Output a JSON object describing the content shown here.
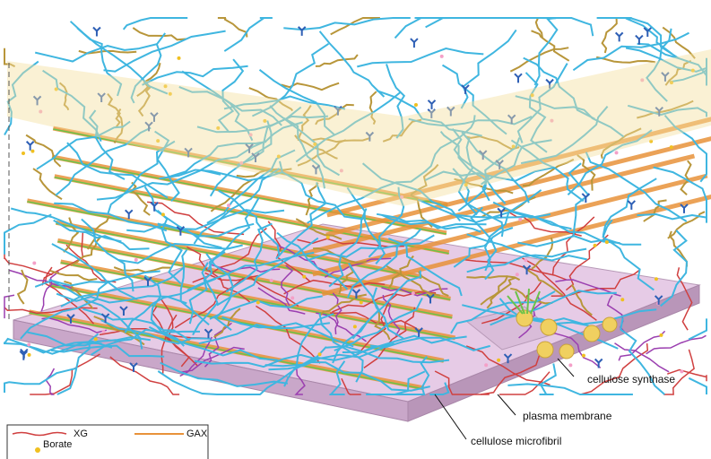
{
  "annotations": [
    "cellulose synthase",
    "plasma membrane",
    "cellulose microfibril"
  ],
  "legend": [
    "XG",
    "GAX",
    "Borate"
  ]
}
